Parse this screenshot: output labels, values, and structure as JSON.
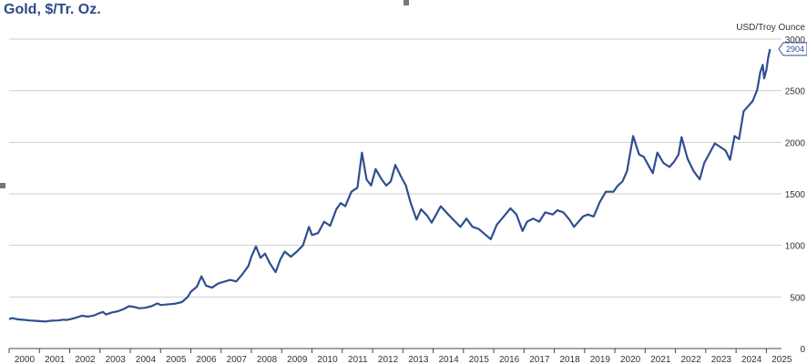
{
  "chart_data": {
    "type": "line",
    "title": "Gold, $/Tr. Oz.",
    "ylabel": "USD/Troy Ounce",
    "ylim": [
      0,
      3000
    ],
    "yticks": [
      0,
      500,
      1000,
      1500,
      2000,
      2500,
      3000
    ],
    "xlim": [
      2000.0,
      2025.5
    ],
    "xticks": [
      2000,
      2001,
      2002,
      2003,
      2004,
      2005,
      2006,
      2007,
      2008,
      2009,
      2010,
      2011,
      2012,
      2013,
      2014,
      2015,
      2016,
      2017,
      2018,
      2019,
      2020,
      2021,
      2022,
      2023,
      2024,
      2025
    ],
    "grid": "horizontal",
    "last_value_label": "2904",
    "series": [
      {
        "name": "",
        "color": "#2f4f8f",
        "points": [
          [
            2000.0,
            285
          ],
          [
            2000.1,
            295
          ],
          [
            2000.3,
            282
          ],
          [
            2000.5,
            278
          ],
          [
            2000.7,
            272
          ],
          [
            2000.9,
            268
          ],
          [
            2001.0,
            266
          ],
          [
            2001.2,
            262
          ],
          [
            2001.4,
            270
          ],
          [
            2001.6,
            272
          ],
          [
            2001.8,
            280
          ],
          [
            2001.9,
            277
          ],
          [
            2002.0,
            283
          ],
          [
            2002.2,
            298
          ],
          [
            2002.4,
            318
          ],
          [
            2002.6,
            310
          ],
          [
            2002.8,
            320
          ],
          [
            2002.95,
            340
          ],
          [
            2003.1,
            355
          ],
          [
            2003.2,
            330
          ],
          [
            2003.4,
            350
          ],
          [
            2003.6,
            362
          ],
          [
            2003.8,
            385
          ],
          [
            2003.95,
            410
          ],
          [
            2004.1,
            405
          ],
          [
            2004.3,
            390
          ],
          [
            2004.5,
            395
          ],
          [
            2004.7,
            410
          ],
          [
            2004.9,
            438
          ],
          [
            2005.0,
            422
          ],
          [
            2005.3,
            430
          ],
          [
            2005.5,
            436
          ],
          [
            2005.7,
            450
          ],
          [
            2005.9,
            500
          ],
          [
            2006.0,
            550
          ],
          [
            2006.2,
            600
          ],
          [
            2006.35,
            700
          ],
          [
            2006.5,
            610
          ],
          [
            2006.7,
            590
          ],
          [
            2006.9,
            630
          ],
          [
            2007.0,
            640
          ],
          [
            2007.3,
            665
          ],
          [
            2007.5,
            650
          ],
          [
            2007.7,
            720
          ],
          [
            2007.9,
            800
          ],
          [
            2008.0,
            890
          ],
          [
            2008.15,
            990
          ],
          [
            2008.3,
            880
          ],
          [
            2008.45,
            920
          ],
          [
            2008.6,
            830
          ],
          [
            2008.8,
            740
          ],
          [
            2008.95,
            860
          ],
          [
            2009.1,
            940
          ],
          [
            2009.3,
            890
          ],
          [
            2009.5,
            940
          ],
          [
            2009.7,
            1000
          ],
          [
            2009.9,
            1180
          ],
          [
            2010.0,
            1100
          ],
          [
            2010.2,
            1120
          ],
          [
            2010.4,
            1230
          ],
          [
            2010.6,
            1190
          ],
          [
            2010.8,
            1350
          ],
          [
            2010.95,
            1410
          ],
          [
            2011.1,
            1380
          ],
          [
            2011.3,
            1520
          ],
          [
            2011.5,
            1560
          ],
          [
            2011.65,
            1900
          ],
          [
            2011.8,
            1640
          ],
          [
            2011.95,
            1580
          ],
          [
            2012.1,
            1740
          ],
          [
            2012.3,
            1640
          ],
          [
            2012.45,
            1580
          ],
          [
            2012.6,
            1620
          ],
          [
            2012.75,
            1780
          ],
          [
            2012.95,
            1660
          ],
          [
            2013.1,
            1580
          ],
          [
            2013.25,
            1420
          ],
          [
            2013.45,
            1250
          ],
          [
            2013.6,
            1350
          ],
          [
            2013.8,
            1290
          ],
          [
            2013.95,
            1220
          ],
          [
            2014.1,
            1300
          ],
          [
            2014.25,
            1380
          ],
          [
            2014.5,
            1300
          ],
          [
            2014.7,
            1240
          ],
          [
            2014.9,
            1180
          ],
          [
            2015.1,
            1260
          ],
          [
            2015.3,
            1180
          ],
          [
            2015.5,
            1160
          ],
          [
            2015.7,
            1110
          ],
          [
            2015.9,
            1060
          ],
          [
            2016.1,
            1200
          ],
          [
            2016.3,
            1270
          ],
          [
            2016.55,
            1360
          ],
          [
            2016.75,
            1300
          ],
          [
            2016.95,
            1140
          ],
          [
            2017.1,
            1230
          ],
          [
            2017.3,
            1260
          ],
          [
            2017.5,
            1230
          ],
          [
            2017.7,
            1320
          ],
          [
            2017.95,
            1300
          ],
          [
            2018.1,
            1340
          ],
          [
            2018.3,
            1320
          ],
          [
            2018.5,
            1250
          ],
          [
            2018.65,
            1180
          ],
          [
            2018.95,
            1280
          ],
          [
            2019.1,
            1300
          ],
          [
            2019.3,
            1280
          ],
          [
            2019.5,
            1420
          ],
          [
            2019.7,
            1520
          ],
          [
            2019.95,
            1520
          ],
          [
            2020.1,
            1580
          ],
          [
            2020.25,
            1620
          ],
          [
            2020.4,
            1720
          ],
          [
            2020.6,
            2060
          ],
          [
            2020.8,
            1880
          ],
          [
            2020.95,
            1860
          ],
          [
            2021.1,
            1780
          ],
          [
            2021.25,
            1700
          ],
          [
            2021.4,
            1900
          ],
          [
            2021.6,
            1800
          ],
          [
            2021.8,
            1760
          ],
          [
            2021.95,
            1810
          ],
          [
            2022.1,
            1880
          ],
          [
            2022.2,
            2050
          ],
          [
            2022.4,
            1840
          ],
          [
            2022.6,
            1720
          ],
          [
            2022.8,
            1640
          ],
          [
            2022.95,
            1800
          ],
          [
            2023.1,
            1880
          ],
          [
            2023.3,
            1990
          ],
          [
            2023.5,
            1950
          ],
          [
            2023.65,
            1920
          ],
          [
            2023.8,
            1830
          ],
          [
            2023.95,
            2060
          ],
          [
            2024.1,
            2030
          ],
          [
            2024.25,
            2300
          ],
          [
            2024.4,
            2350
          ],
          [
            2024.55,
            2400
          ],
          [
            2024.7,
            2510
          ],
          [
            2024.8,
            2680
          ],
          [
            2024.88,
            2750
          ],
          [
            2024.93,
            2620
          ],
          [
            2025.0,
            2700
          ],
          [
            2025.06,
            2820
          ],
          [
            2025.12,
            2904
          ]
        ]
      }
    ]
  }
}
